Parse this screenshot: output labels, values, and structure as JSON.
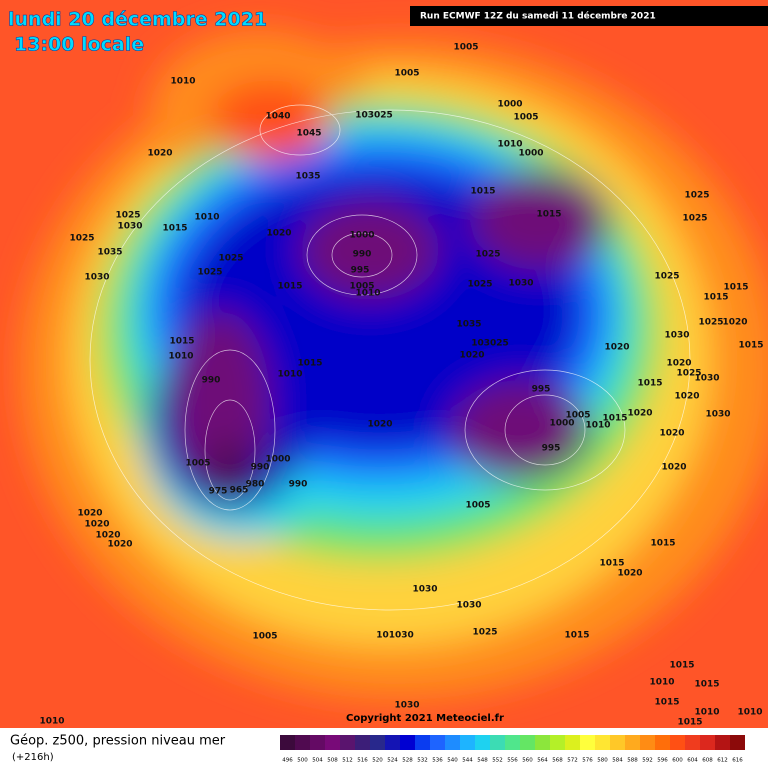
{
  "header": {
    "date": "lundi 20 décembre 2021",
    "time": "13:00 locale",
    "run": "Run ECMWF 12Z du samedi 11 décembre 2021"
  },
  "copyright": "Copyright 2021 Meteociel.fr",
  "footer": {
    "title": "Géop. z500, pression niveau mer",
    "lead": "(+216h)"
  },
  "colorbar": {
    "values": [
      496,
      500,
      504,
      508,
      512,
      516,
      520,
      524,
      528,
      532,
      536,
      540,
      544,
      548,
      552,
      556,
      560,
      564,
      568,
      572,
      576,
      580,
      584,
      588,
      592,
      596,
      600,
      604,
      608,
      612,
      616
    ],
    "colors": [
      "#3c0a3c",
      "#500a50",
      "#640a64",
      "#780a78",
      "#5a146e",
      "#3c1e78",
      "#28288c",
      "#1414b4",
      "#0000d2",
      "#0a3cf0",
      "#1e64ff",
      "#1e8cff",
      "#1eb4ff",
      "#1ed2f0",
      "#3cdcb4",
      "#50e68c",
      "#64e664",
      "#8ce63c",
      "#b4f028",
      "#dcf01e",
      "#ffff3c",
      "#ffe632",
      "#ffc828",
      "#ffaa1e",
      "#ff8c14",
      "#ff6e0a",
      "#ff5014",
      "#f03c1e",
      "#dc281e",
      "#b41414",
      "#8c0a0a"
    ]
  },
  "isobar_labels": [
    "1005",
    "1005",
    "1010",
    "1040",
    "1045",
    "103025",
    "1000",
    "1005",
    "1020",
    "1010",
    "1000",
    "1035",
    "1015",
    "1025",
    "1025",
    "1010",
    "1030",
    "1015",
    "1015",
    "1025",
    "1020",
    "1000",
    "1025",
    "990",
    "1035",
    "1025",
    "1025",
    "995",
    "1030",
    "1025",
    "1025",
    "1005",
    "1015",
    "1025",
    "1030",
    "1010",
    "1015",
    "1015",
    "1035",
    "1025",
    "1020",
    "1030",
    "1015",
    "103025",
    "1015",
    "1010",
    "1020",
    "1020",
    "1015",
    "1020",
    "1010",
    "1025",
    "990",
    "1030",
    "995",
    "1015",
    "1020",
    "1020",
    "1005",
    "1015",
    "1020",
    "1030",
    "1000",
    "1010",
    "1020",
    "995",
    "1000",
    "990",
    "1005",
    "1020",
    "980",
    "965",
    "975",
    "990",
    "1005",
    "1020",
    "1020",
    "1020",
    "1020",
    "1015",
    "1015",
    "1020",
    "1030",
    "1030",
    "1005",
    "101030",
    "1025",
    "1015",
    "1015",
    "1010",
    "1015",
    "1030",
    "1015",
    "1010",
    "1010",
    "1015",
    "1010"
  ]
}
